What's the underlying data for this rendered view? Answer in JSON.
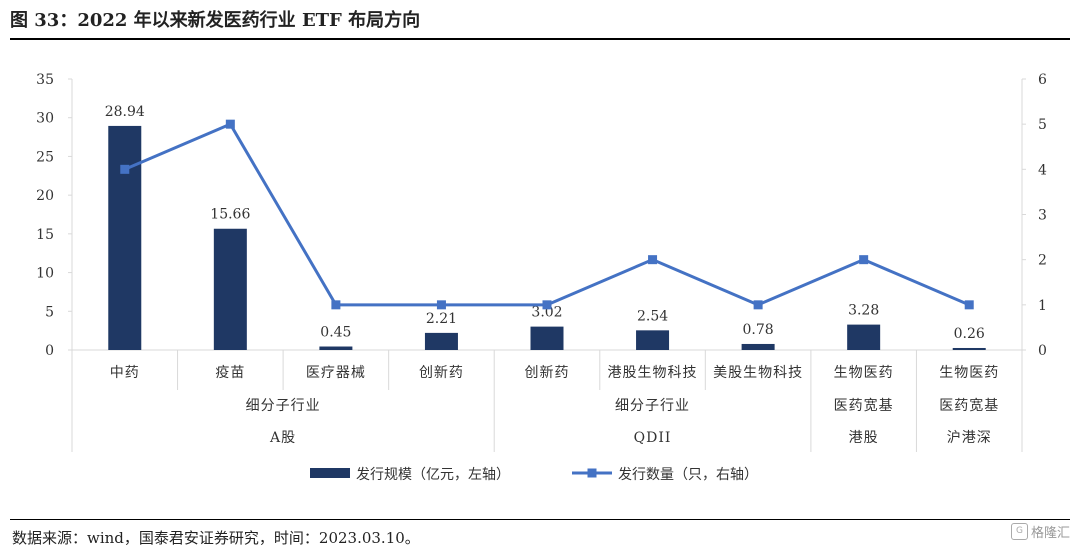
{
  "header": {
    "title": "图 33：2022 年以来新发医药行业 ETF 布局方向"
  },
  "footer": {
    "source": "数据来源：wind，国泰君安证券研究，时间：2023.03.10。"
  },
  "watermark": {
    "text": "格隆汇",
    "icon": "G"
  },
  "chart_data": {
    "type": "bar+line",
    "categories": [
      "中药",
      "疫苗",
      "医疗器械",
      "创新药",
      "创新药",
      "港股生物科技",
      "美股生物科技",
      "生物医药",
      "生物医药"
    ],
    "series": [
      {
        "name": "发行规模（亿元，左轴）",
        "type": "bar",
        "axis": "left",
        "values": [
          28.94,
          15.66,
          0.45,
          2.21,
          3.02,
          2.54,
          0.78,
          3.28,
          0.26
        ],
        "labels": [
          "28.94",
          "15.66",
          "0.45",
          "2.21",
          "3.02",
          "2.54",
          "0.78",
          "3.28",
          "0.26"
        ]
      },
      {
        "name": "发行数量（只，右轴）",
        "type": "line",
        "axis": "right",
        "values": [
          4,
          5,
          1,
          1,
          1,
          2,
          1,
          2,
          1
        ]
      }
    ],
    "y_left": {
      "min": 0,
      "max": 35,
      "ticks": [
        0,
        5,
        10,
        15,
        20,
        25,
        30,
        35
      ]
    },
    "y_right": {
      "min": 0,
      "max": 6,
      "ticks": [
        0,
        1,
        2,
        3,
        4,
        5,
        6
      ]
    },
    "group_levels": [
      [
        {
          "label": "",
          "span": 7
        },
        {
          "label": "医药宽基",
          "span": 1
        },
        {
          "label": "医药宽基",
          "span": 1
        }
      ],
      [
        {
          "label": "细分子行业",
          "span": 4
        },
        {
          "label": "细分子行业",
          "span": 3
        },
        {
          "label": "港股",
          "span": 1
        },
        {
          "label": "沪港深",
          "span": 1
        }
      ],
      [
        {
          "label": "A股",
          "span": 4
        },
        {
          "label": "QDII",
          "span": 3
        }
      ]
    ],
    "legend_position": "bottom",
    "colors": {
      "bar": "#1f3864",
      "line": "#4472c4",
      "axis": "#d9d9d9",
      "text": "#333333"
    }
  }
}
